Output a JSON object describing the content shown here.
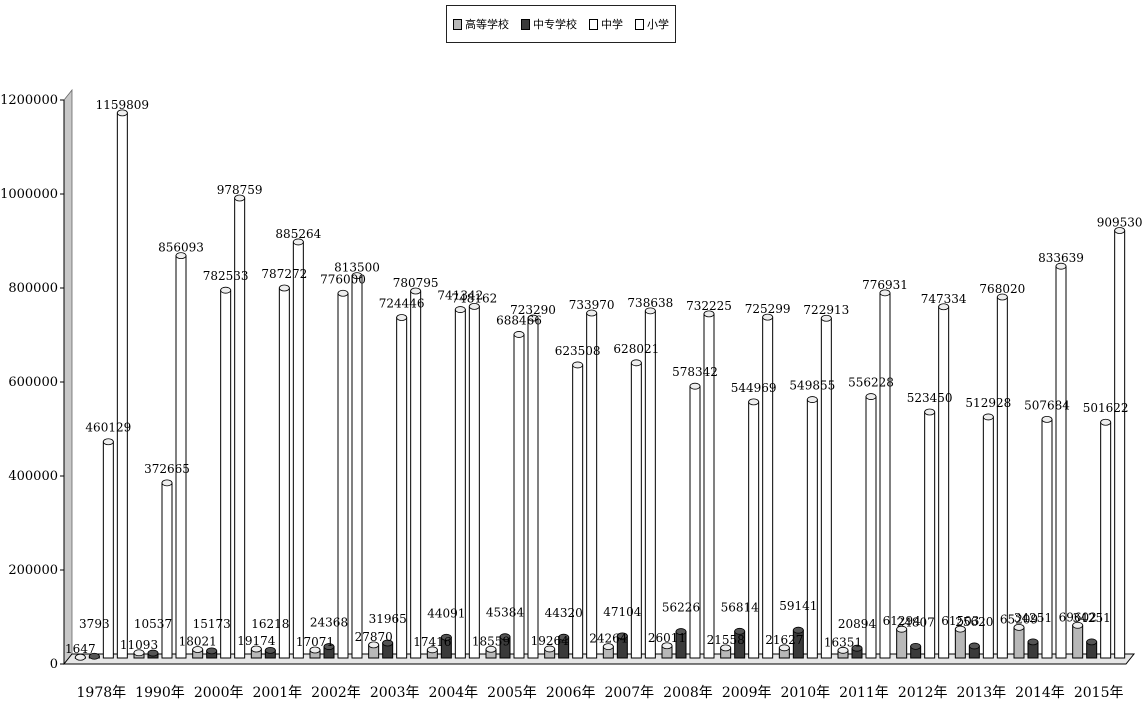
{
  "chart_data": {
    "type": "bar",
    "title": "",
    "xlabel": "",
    "ylabel": "",
    "ylim": [
      0,
      1200000
    ],
    "yticks": [
      "0",
      "200000",
      "400000",
      "600000",
      "800000",
      "1000000",
      "1200000"
    ],
    "grid": false,
    "legend_position": "top-center",
    "categories": [
      "1978年",
      "1990年",
      "2000年",
      "2001年",
      "2002年",
      "2003年",
      "2004年",
      "2005年",
      "2006年",
      "2007年",
      "2008年",
      "2009年",
      "2010年",
      "2011年",
      "2012年",
      "2013年",
      "2014年",
      "2015年"
    ],
    "series": [
      {
        "name": "高等学校",
        "color": "#b8b8b8",
        "values": [
          1647,
          11093,
          18021,
          19174,
          17071,
          27870,
          17416,
          18559,
          19264,
          24264,
          26011,
          21558,
          21627,
          16351,
          61294,
          61503,
          65209,
          69602
        ]
      },
      {
        "name": "中专学校",
        "color": "#3a3a3a",
        "values": [
          3793,
          10537,
          15173,
          16218,
          24368,
          31965,
          44091,
          45384,
          44320,
          47104,
          56226,
          56814,
          59141,
          20894,
          24807,
          25620,
          34251,
          34251
        ]
      },
      {
        "name": "中学",
        "color": "#ffffff",
        "values": [
          460129,
          372665,
          782533,
          787272,
          776000,
          724446,
          741342,
          688466,
          623508,
          628021,
          578342,
          544969,
          549855,
          556228,
          523450,
          512928,
          507684,
          501622
        ]
      },
      {
        "name": "小学",
        "color": "#ffffff",
        "values": [
          1159809,
          856093,
          978759,
          885264,
          813500,
          780795,
          748162,
          723290,
          733970,
          738638,
          732225,
          725299,
          722913,
          776931,
          747334,
          768020,
          833639,
          909530
        ]
      }
    ],
    "data_labels": [
      [
        "1647",
        "11093",
        "18021",
        "19174",
        "17071",
        "27870",
        "17416",
        "18559",
        "19264",
        "24264",
        "26011",
        "21558",
        "21627",
        "16351",
        "61294",
        "61503",
        "65209",
        "69602"
      ],
      [
        "3793",
        "10537",
        "15173",
        "16218",
        "24368",
        "31965",
        "44091",
        "45384",
        "44320",
        "47104",
        "56226",
        "56814",
        "59141",
        "20894",
        "24807",
        "25620",
        "34251",
        "34251"
      ],
      [
        "460129",
        "372665",
        "782533",
        "787272",
        "776000",
        "724446",
        "741342",
        "688466",
        "623508",
        "628021",
        "578342",
        "544969",
        "549855",
        "556228",
        "523450",
        "512928",
        "507684",
        "501622"
      ],
      [
        "1159809",
        "856093",
        "978759",
        "885264",
        "813500",
        "780795",
        "748162",
        "723290",
        "733970",
        "738638",
        "732225",
        "725299",
        "722913",
        "776931",
        "747334",
        "768020",
        "833639",
        "909530"
      ]
    ],
    "colors": {
      "wall": "#c8c8c8",
      "axis": "#000000",
      "floor": "#e6e6e6"
    }
  }
}
